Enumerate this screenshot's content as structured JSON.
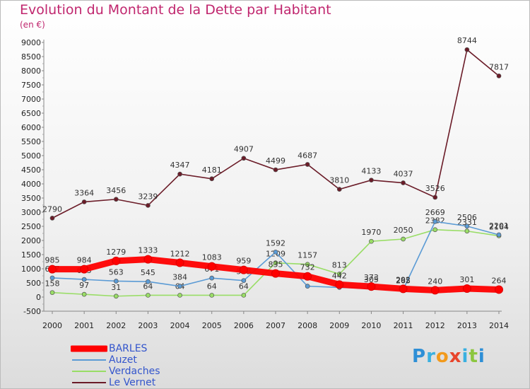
{
  "title": "Evolution du Montant de la Dette par Habitant",
  "unit_label": "(en €)",
  "logo": {
    "text": "Proxiti",
    "letters": [
      "P",
      "r",
      "o",
      "x",
      "i",
      "t",
      "i"
    ],
    "colors": [
      "#2e8fd6",
      "#3ab0e0",
      "#f29a1c",
      "#e8452c",
      "#3ab0e0",
      "#8cc63f",
      "#2e8fd6"
    ]
  },
  "chart_data": {
    "type": "line",
    "title": "Evolution du Montant de la Dette par Habitant",
    "ylabel": "(en €)",
    "xlabel": "",
    "ylim": [
      -500,
      9000
    ],
    "yticks": [
      -500,
      0,
      500,
      1000,
      1500,
      2000,
      2500,
      3000,
      3500,
      4000,
      4500,
      5000,
      5500,
      6000,
      6500,
      7000,
      7500,
      8000,
      8500,
      9000
    ],
    "x": [
      2000,
      2001,
      2002,
      2003,
      2004,
      2005,
      2006,
      2007,
      2008,
      2009,
      2010,
      2011,
      2012,
      2013,
      2014
    ],
    "series": [
      {
        "name": "BARLES",
        "color": "#ff0000",
        "values": [
          985,
          984,
          1279,
          1333,
          1212,
          1083,
          959,
          835,
          732,
          442,
          373,
          292,
          240,
          301,
          264
        ],
        "labels": [
          "985",
          "984",
          "1279",
          "1333",
          "1212",
          "1083",
          "959",
          "835",
          "732",
          "442",
          "373",
          "292",
          "240",
          "301",
          "264"
        ]
      },
      {
        "name": "Auzet",
        "color": "#5b9bd5",
        "values": [
          677,
          623,
          563,
          545,
          384,
          671,
          583,
          1592,
          384,
          340,
          305,
          265,
          2669,
          2506,
          2201
        ],
        "labels": [
          "677",
          "623",
          "563",
          "545",
          "384",
          "671",
          "583",
          "1592",
          "",
          "",
          "305",
          "265",
          "2669",
          "2506",
          "2201"
        ]
      },
      {
        "name": "Verdaches",
        "color": "#99dd66",
        "values": [
          158,
          97,
          31,
          64,
          64,
          64,
          64,
          1209,
          1157,
          813,
          1970,
          2050,
          2382,
          2331,
          2164
        ],
        "labels": [
          "158",
          "97",
          "31",
          "64",
          "64",
          "64",
          "64",
          "1209",
          "1157",
          "813",
          "1970",
          "2050",
          "2382",
          "2331",
          "2164"
        ]
      },
      {
        "name": "Le Vernet",
        "color": "#6b1c28",
        "values": [
          2790,
          3364,
          3456,
          3239,
          4347,
          4181,
          4907,
          4499,
          4687,
          3810,
          4133,
          4037,
          3526,
          8744,
          7817
        ],
        "labels": [
          "2790",
          "3364",
          "3456",
          "3239",
          "4347",
          "4181",
          "4907",
          "4499",
          "4687",
          "3810",
          "4133",
          "4037",
          "3526",
          "8744",
          "7817"
        ]
      }
    ],
    "legend": [
      "BARLES",
      "Auzet",
      "Verdaches",
      "Le Vernet"
    ],
    "legend_position": "bottom-left",
    "grid": false
  }
}
